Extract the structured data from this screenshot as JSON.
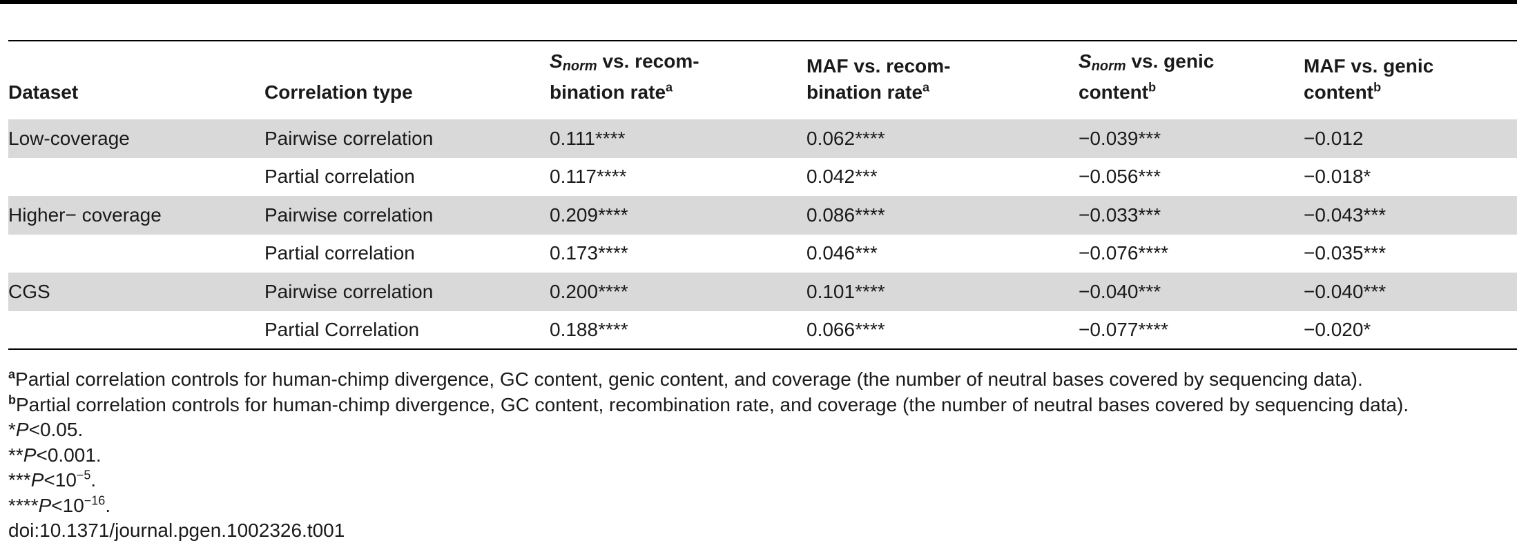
{
  "table": {
    "headers": {
      "dataset": "Dataset",
      "correlation_type": "Correlation type",
      "col3": {
        "symbol": "S",
        "subscript": "norm",
        "line1_rest": " vs. recom-",
        "line2": "bination rate",
        "footnote": "a"
      },
      "col4": {
        "line1": "MAF vs. recom-",
        "line2": "bination rate",
        "footnote": "a"
      },
      "col5": {
        "symbol": "S",
        "subscript": "norm",
        "line1_rest": " vs. genic",
        "line2": "content",
        "footnote": "b"
      },
      "col6": {
        "line1": "MAF vs. genic",
        "line2": "content",
        "footnote": "b"
      }
    },
    "rows": [
      {
        "dataset": "Low-coverage",
        "type": "Pairwise correlation",
        "v1": "0.111****",
        "v2": "0.062****",
        "v3": "−0.039***",
        "v4": "−0.012"
      },
      {
        "dataset": "",
        "type": "Partial correlation",
        "v1": "0.117****",
        "v2": "0.042***",
        "v3": "−0.056***",
        "v4": "−0.018*"
      },
      {
        "dataset": "Higher− coverage",
        "type": "Pairwise correlation",
        "v1": "0.209****",
        "v2": "0.086****",
        "v3": "−0.033***",
        "v4": "−0.043***"
      },
      {
        "dataset": "",
        "type": "Partial correlation",
        "v1": "0.173****",
        "v2": "0.046***",
        "v3": "−0.076****",
        "v4": "−0.035***"
      },
      {
        "dataset": "CGS",
        "type": "Pairwise correlation",
        "v1": "0.200****",
        "v2": "0.101****",
        "v3": "−0.040***",
        "v4": "−0.040***"
      },
      {
        "dataset": "",
        "type": "Partial Correlation",
        "v1": "0.188****",
        "v2": "0.066****",
        "v3": "−0.077****",
        "v4": "−0.020*"
      }
    ]
  },
  "footnotes": {
    "a": {
      "mark": "a",
      "text": "Partial correlation controls for human-chimp divergence, GC content, genic content, and coverage (the number of neutral bases covered by sequencing data)."
    },
    "b": {
      "mark": "b",
      "text": "Partial correlation controls for human-chimp divergence, GC content, recombination rate, and coverage (the number of neutral bases covered by sequencing data)."
    },
    "p1": {
      "stars": "*",
      "p": "P",
      "rel": "<0.05."
    },
    "p2": {
      "stars": "**",
      "p": "P",
      "rel": "<0.001."
    },
    "p3": {
      "stars": "***",
      "p": "P",
      "rel": "<10",
      "exp": "−5",
      "end": "."
    },
    "p4": {
      "stars": "****",
      "p": "P",
      "rel": "<10",
      "exp": "−16",
      "end": "."
    },
    "doi": "doi:10.1371/journal.pgen.1002326.t001"
  }
}
